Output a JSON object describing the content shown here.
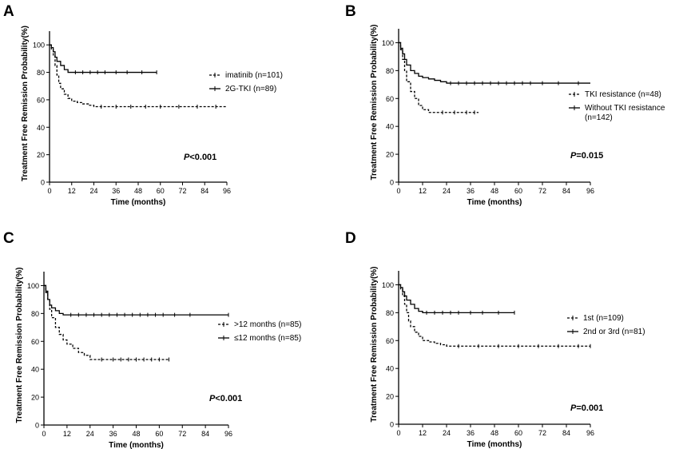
{
  "figure": {
    "colors": {
      "line": "#000000",
      "background": "#ffffff"
    }
  },
  "chart_data": [
    {
      "panel_label": "A",
      "type": "line",
      "title": "",
      "xlabel": "Time (months)",
      "ylabel": "Treatment Free Remission Probability(%)",
      "xlim": [
        0,
        96
      ],
      "ylim": [
        0,
        110
      ],
      "xticks": [
        0,
        12,
        24,
        36,
        48,
        60,
        72,
        84,
        96
      ],
      "yticks": [
        0,
        20,
        40,
        60,
        80,
        100
      ],
      "p_label": "P",
      "p_value": "<0.001",
      "legend_position": "right",
      "series": [
        {
          "name": "imatinib (n=101)",
          "style": "dashed",
          "marker": "dash",
          "x": [
            0,
            1,
            2,
            3,
            4,
            5,
            6,
            8,
            10,
            12,
            15,
            18,
            21,
            24,
            30,
            96
          ],
          "y": [
            100,
            97,
            92,
            85,
            78,
            72,
            68,
            64,
            61,
            59,
            58,
            57,
            56,
            55,
            55,
            55
          ],
          "censored": [
            28,
            36,
            44,
            52,
            60,
            70,
            80,
            90
          ]
        },
        {
          "name": "2G-TKI (n=89)",
          "style": "solid",
          "marker": "line",
          "x": [
            0,
            1,
            2,
            3,
            4,
            6,
            8,
            10,
            58
          ],
          "y": [
            100,
            98,
            95,
            91,
            88,
            85,
            82,
            80,
            80
          ],
          "censored": [
            14,
            18,
            22,
            26,
            30,
            36,
            42,
            50,
            58
          ]
        }
      ]
    },
    {
      "panel_label": "B",
      "type": "line",
      "title": "",
      "xlabel": "Time (months)",
      "ylabel": "Treatment Free Remission Probability(%)",
      "xlim": [
        0,
        96
      ],
      "ylim": [
        0,
        110
      ],
      "xticks": [
        0,
        12,
        24,
        36,
        48,
        60,
        72,
        84,
        96
      ],
      "yticks": [
        0,
        20,
        40,
        60,
        80,
        100
      ],
      "p_label": "P",
      "p_value": "=0.015",
      "legend_position": "right",
      "series": [
        {
          "name": "TKI resistance (n=48)",
          "style": "dashed",
          "marker": "dash",
          "x": [
            0,
            1,
            2,
            3,
            4,
            6,
            8,
            10,
            12,
            15,
            40
          ],
          "y": [
            100,
            95,
            88,
            80,
            72,
            65,
            60,
            55,
            52,
            50,
            50
          ],
          "censored": [
            22,
            28,
            34,
            38
          ]
        },
        {
          "name": "Without TKI resistance (n=142)",
          "style": "solid",
          "marker": "line",
          "x": [
            0,
            1,
            2,
            3,
            4,
            6,
            8,
            10,
            12,
            15,
            18,
            21,
            24,
            96
          ],
          "y": [
            100,
            96,
            92,
            88,
            84,
            80,
            78,
            76,
            75,
            74,
            73,
            72,
            71,
            71
          ],
          "censored": [
            26,
            30,
            34,
            38,
            42,
            46,
            50,
            54,
            58,
            62,
            66,
            72,
            80,
            90
          ]
        }
      ]
    },
    {
      "panel_label": "C",
      "type": "line",
      "title": "",
      "xlabel": "Time (months)",
      "ylabel": "Treatment Free Remission Probability(%)",
      "xlim": [
        0,
        96
      ],
      "ylim": [
        0,
        110
      ],
      "xticks": [
        0,
        12,
        24,
        36,
        48,
        60,
        72,
        84,
        96
      ],
      "yticks": [
        0,
        20,
        40,
        60,
        80,
        100
      ],
      "p_label": "P",
      "p_value": "<0.001",
      "legend_position": "right",
      "series": [
        {
          "name": ">12 months (n=85)",
          "style": "dashed",
          "marker": "dash",
          "x": [
            0,
            1,
            2,
            3,
            4,
            6,
            8,
            10,
            12,
            15,
            18,
            21,
            24,
            65
          ],
          "y": [
            100,
            96,
            90,
            83,
            77,
            70,
            65,
            61,
            58,
            55,
            52,
            50,
            47,
            47
          ],
          "censored": [
            30,
            36,
            40,
            44,
            48,
            52,
            56,
            60,
            65
          ]
        },
        {
          "name": "≤12 months (n=85)",
          "style": "solid",
          "marker": "line",
          "x": [
            0,
            1,
            2,
            3,
            4,
            6,
            8,
            10,
            96
          ],
          "y": [
            100,
            95,
            90,
            86,
            84,
            82,
            80,
            79,
            79
          ],
          "censored": [
            14,
            18,
            22,
            26,
            30,
            34,
            38,
            42,
            46,
            50,
            54,
            58,
            62,
            68,
            76,
            96
          ]
        }
      ]
    },
    {
      "panel_label": "D",
      "type": "line",
      "title": "",
      "xlabel": "Time (months)",
      "ylabel": "Treatment Free Remission Probability(%)",
      "xlim": [
        0,
        96
      ],
      "ylim": [
        0,
        110
      ],
      "xticks": [
        0,
        12,
        24,
        36,
        48,
        60,
        72,
        84,
        96
      ],
      "yticks": [
        0,
        20,
        40,
        60,
        80,
        100
      ],
      "p_label": "P",
      "p_value": "=0.001",
      "legend_position": "right",
      "series": [
        {
          "name": "1st (n=109)",
          "style": "dashed",
          "marker": "dash",
          "x": [
            0,
            1,
            2,
            3,
            4,
            5,
            6,
            8,
            10,
            12,
            15,
            18,
            21,
            24,
            96
          ],
          "y": [
            100,
            97,
            92,
            86,
            80,
            74,
            70,
            66,
            63,
            60,
            59,
            58,
            57,
            56,
            56
          ],
          "censored": [
            30,
            40,
            50,
            60,
            70,
            80,
            90,
            96
          ]
        },
        {
          "name": "2nd or 3rd (n=81)",
          "style": "solid",
          "marker": "line",
          "x": [
            0,
            1,
            2,
            3,
            4,
            6,
            8,
            10,
            12,
            58
          ],
          "y": [
            100,
            98,
            95,
            92,
            89,
            86,
            83,
            81,
            80,
            80
          ],
          "censored": [
            14,
            18,
            22,
            26,
            30,
            36,
            42,
            50,
            58
          ]
        }
      ]
    }
  ]
}
